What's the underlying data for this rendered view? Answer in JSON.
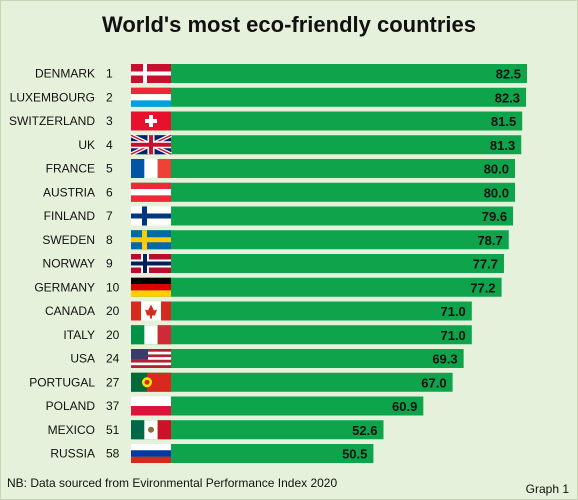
{
  "title": "World's most eco-friendly countries",
  "footnote": "NB: Data sourced from Evironmental Performance Index 2020",
  "graph_label": "Graph 1",
  "colors": {
    "bar": "#0ea44b",
    "background": "#e5f1da",
    "text": "#111111"
  },
  "chart_data": {
    "type": "bar",
    "orientation": "horizontal",
    "title": "World's most eco-friendly countries",
    "xlabel": "",
    "ylabel": "",
    "xlim": [
      0,
      82.5
    ],
    "grid": false,
    "legend": "none",
    "categories": [
      "DENMARK",
      "LUXEMBOURG",
      "SWITZERLAND",
      "UK",
      "FRANCE",
      "AUSTRIA",
      "FINLAND",
      "SWEDEN",
      "NORWAY",
      "GERMANY",
      "CANADA",
      "ITALY",
      "USA",
      "PORTUGAL",
      "POLAND",
      "MEXICO",
      "RUSSIA"
    ],
    "ranks": [
      "1",
      "2",
      "3",
      "4",
      "5",
      "6",
      "7",
      "8",
      "9",
      "10",
      "20",
      "20",
      "24",
      "27",
      "37",
      "51",
      "58"
    ],
    "values": [
      82.5,
      82.3,
      81.5,
      81.3,
      80.0,
      80.0,
      79.6,
      78.7,
      77.7,
      77.2,
      71.0,
      71.0,
      69.3,
      67.0,
      60.9,
      52.6,
      50.5
    ],
    "value_labels": [
      "82.5",
      "82.3",
      "81.5",
      "81.3",
      "80.0",
      "80.0",
      "79.6",
      "78.7",
      "77.7",
      "77.2",
      "71.0",
      "71.0",
      "69.3",
      "67.0",
      "60.9",
      "52.6",
      "50.5"
    ],
    "flags": [
      "denmark-flag",
      "luxembourg-flag",
      "switzerland-flag",
      "uk-flag",
      "france-flag",
      "austria-flag",
      "finland-flag",
      "sweden-flag",
      "norway-flag",
      "germany-flag",
      "canada-flag",
      "italy-flag",
      "usa-flag",
      "portugal-flag",
      "poland-flag",
      "mexico-flag",
      "russia-flag"
    ]
  }
}
